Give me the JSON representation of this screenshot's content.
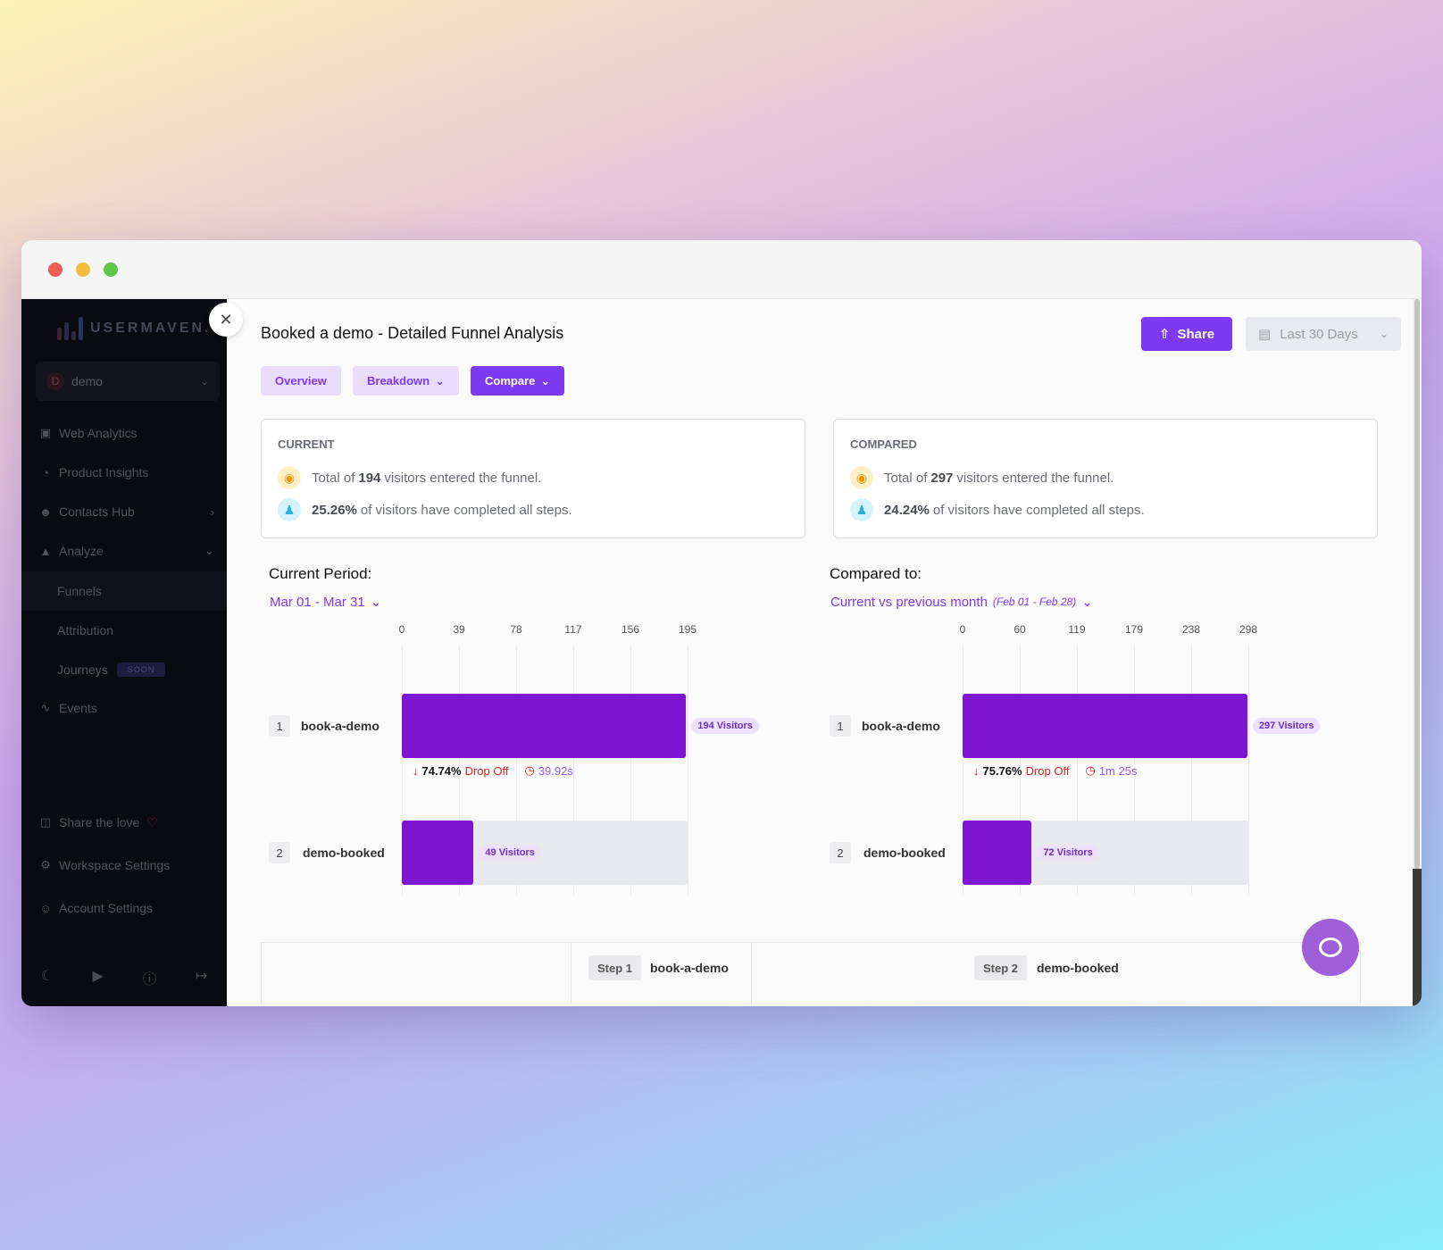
{
  "sidebar": {
    "brand": "USERMAVEN.",
    "workspace": {
      "initial": "D",
      "name": "demo"
    },
    "items": [
      {
        "label": "Web Analytics",
        "icon": "calendar-icon"
      },
      {
        "label": "Product Insights",
        "icon": "pie-chart-icon"
      },
      {
        "label": "Contacts Hub",
        "icon": "user-icon"
      },
      {
        "label": "Analyze",
        "icon": "area-chart-icon"
      }
    ],
    "sub_items": [
      {
        "label": "Funnels"
      },
      {
        "label": "Attribution"
      },
      {
        "label": "Journeys",
        "badge": "SOON"
      }
    ],
    "events": "Events",
    "share_love": "Share the love",
    "workspace_settings": "Workspace Settings",
    "account_settings": "Account Settings"
  },
  "header": {
    "title": "Booked a demo - Detailed Funnel Analysis",
    "share_label": "Share",
    "date_range": "Last 30 Days"
  },
  "tabs": {
    "overview": "Overview",
    "breakdown": "Breakdown",
    "compare": "Compare"
  },
  "current_card": {
    "label": "CURRENT",
    "line1_pre": "Total of",
    "line1_value": "194",
    "line1_post": "visitors entered the funnel.",
    "line2_value": "25.26%",
    "line2_post": "of visitors have completed all steps."
  },
  "compared_card": {
    "label": "COMPARED",
    "line1_pre": "Total of",
    "line1_value": "297",
    "line1_post": "visitors entered the funnel.",
    "line2_value": "24.24%",
    "line2_post": "of visitors have completed all steps."
  },
  "current_period": {
    "label": "Current Period:",
    "value": "Mar 01 - Mar 31"
  },
  "compared_period": {
    "label": "Compared to:",
    "value": "Current vs previous month",
    "range": "(Feb 01 - Feb 28)"
  },
  "chart_data": [
    {
      "type": "bar",
      "orientation": "horizontal",
      "ticks": [
        "0",
        "39",
        "78",
        "117",
        "156",
        "195"
      ],
      "xlim": [
        0,
        195
      ],
      "categories": [
        "book-a-demo",
        "demo-booked"
      ],
      "values": [
        194,
        49
      ],
      "value_labels": [
        "194 Visitors",
        "49 Visitors"
      ],
      "step_numbers": [
        "1",
        "2"
      ],
      "drop_off": {
        "percent": "74.74%",
        "label": "Drop Off",
        "time": "39.92s"
      }
    },
    {
      "type": "bar",
      "orientation": "horizontal",
      "ticks": [
        "0",
        "60",
        "119",
        "179",
        "238",
        "298"
      ],
      "xlim": [
        0,
        298
      ],
      "categories": [
        "book-a-demo",
        "demo-booked"
      ],
      "values": [
        297,
        72
      ],
      "value_labels": [
        "297 Visitors",
        "72 Visitors"
      ],
      "step_numbers": [
        "1",
        "2"
      ],
      "drop_off": {
        "percent": "75.76%",
        "label": "Drop Off",
        "time": "1m 25s"
      }
    }
  ],
  "steps_table": {
    "step1_chip": "Step 1",
    "step1_name": "book-a-demo",
    "step2_chip": "Step 2",
    "step2_name": "demo-booked"
  },
  "colors": {
    "accent": "#7e3af2",
    "bar": "#7d15d1",
    "drop_off": "#d02828"
  }
}
